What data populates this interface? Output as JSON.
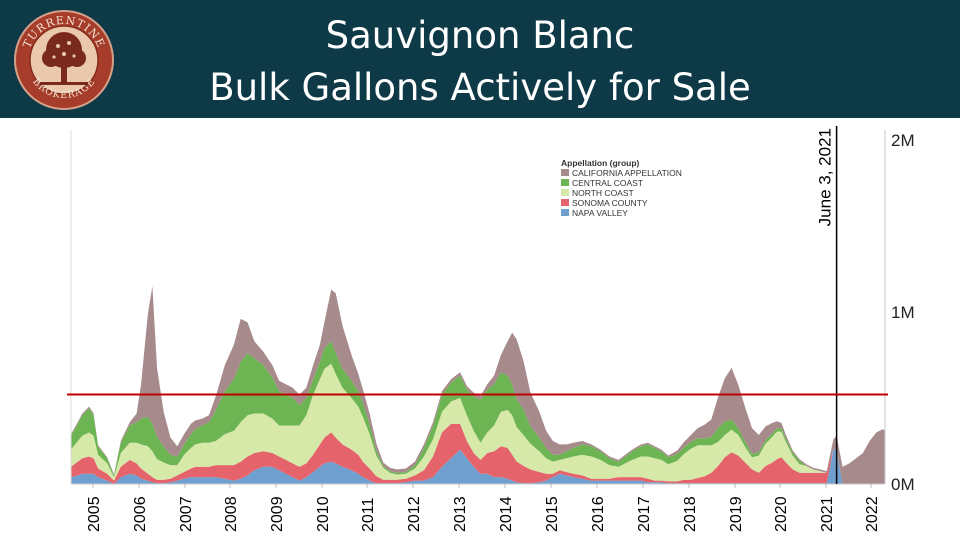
{
  "header": {
    "title_line1": "Sauvignon Blanc",
    "title_line2": "Bulk Gallons Actively for Sale",
    "logo_text_top": "TURRENTINE",
    "logo_text_bottom": "BROKERAGE",
    "background": "#0e3a47"
  },
  "chart_data": {
    "type": "area",
    "stacked": true,
    "title": "",
    "xlabel": "",
    "ylabel": "",
    "ylim": [
      0,
      2000000
    ],
    "x_ticks": [
      "2005",
      "2006",
      "2007",
      "2008",
      "2009",
      "2010",
      "2011",
      "2012",
      "2013",
      "2014",
      "2015",
      "2016",
      "2017",
      "2018",
      "2019",
      "2020",
      "2021",
      "2022"
    ],
    "y_ticks": [
      {
        "value": 0,
        "label": "0M"
      },
      {
        "value": 1000000,
        "label": "1M"
      },
      {
        "value": 2000000,
        "label": "2M"
      }
    ],
    "axis_side": "right",
    "legend": {
      "title": "Appellation (group)",
      "position": "top-center",
      "items": [
        {
          "name": "CALIFORNIA APPELLATION",
          "color": "#a78a8c"
        },
        {
          "name": "CENTRAL COAST",
          "color": "#6db452"
        },
        {
          "name": "NORTH COAST",
          "color": "#d7e9a9"
        },
        {
          "name": "SONOMA COUNTY",
          "color": "#e5636b"
        },
        {
          "name": "NAPA VALLEY",
          "color": "#6f9fcf"
        }
      ]
    },
    "annotations": {
      "vertical_line": {
        "x": 2021.42,
        "label": "June 3, 2021",
        "color": "#000000"
      },
      "reference_line": {
        "y": 520000,
        "color": "#c00000"
      }
    },
    "x": [
      2004.5,
      2004.65,
      2004.75,
      2004.9,
      2005.0,
      2005.1,
      2005.3,
      2005.45,
      2005.6,
      2005.8,
      2005.95,
      2006.05,
      2006.2,
      2006.3,
      2006.4,
      2006.55,
      2006.7,
      2006.85,
      2007.0,
      2007.15,
      2007.25,
      2007.4,
      2007.55,
      2007.7,
      2007.9,
      2008.1,
      2008.25,
      2008.4,
      2008.55,
      2008.75,
      2008.95,
      2009.1,
      2009.25,
      2009.4,
      2009.55,
      2009.7,
      2009.85,
      2010.0,
      2010.1,
      2010.25,
      2010.35,
      2010.5,
      2010.7,
      2010.85,
      2010.95,
      2011.1,
      2011.25,
      2011.4,
      2011.55,
      2011.7,
      2011.9,
      2012.1,
      2012.3,
      2012.5,
      2012.7,
      2012.9,
      2013.1,
      2013.25,
      2013.4,
      2013.55,
      2013.7,
      2013.85,
      2014.0,
      2014.15,
      2014.25,
      2014.35,
      2014.5,
      2014.65,
      2014.85,
      2015.0,
      2015.15,
      2015.3,
      2015.45,
      2015.6,
      2015.8,
      2016.0,
      2016.2,
      2016.4,
      2016.6,
      2016.75,
      2016.9,
      2017.1,
      2017.25,
      2017.4,
      2017.55,
      2017.7,
      2017.9,
      2018.05,
      2018.2,
      2018.35,
      2018.5,
      2018.65,
      2018.8,
      2018.95,
      2019.1,
      2019.25,
      2019.4,
      2019.55,
      2019.7,
      2019.85,
      2020.0,
      2020.1,
      2020.2,
      2020.3,
      2020.45,
      2020.6,
      2020.75,
      2020.9,
      2021.05,
      2021.2,
      2021.35,
      2021.42,
      2021.55,
      2021.7,
      2021.85,
      2022.0,
      2022.15,
      2022.3,
      2022.45,
      2022.5
    ],
    "series": [
      {
        "name": "NAPA VALLEY",
        "values": [
          40,
          50,
          60,
          60,
          60,
          40,
          20,
          0,
          40,
          60,
          50,
          30,
          20,
          10,
          5,
          5,
          10,
          20,
          30,
          40,
          40,
          40,
          40,
          40,
          30,
          20,
          30,
          50,
          80,
          100,
          100,
          80,
          60,
          40,
          20,
          40,
          70,
          100,
          120,
          130,
          120,
          100,
          80,
          60,
          40,
          20,
          5,
          5,
          5,
          5,
          10,
          20,
          20,
          40,
          100,
          150,
          200,
          150,
          100,
          60,
          60,
          40,
          40,
          30,
          20,
          10,
          5,
          5,
          10,
          20,
          40,
          60,
          50,
          40,
          30,
          20,
          20,
          20,
          20,
          20,
          20,
          20,
          10,
          10,
          10,
          5,
          5,
          5,
          5,
          5,
          5,
          5,
          5,
          5,
          5,
          5,
          5,
          5,
          5,
          5,
          5,
          5,
          5,
          5,
          5,
          5,
          5,
          5,
          5,
          5,
          200,
          200,
          0,
          0,
          0,
          0,
          0,
          0,
          0,
          0
        ]
      },
      {
        "name": "SONOMA COUNTY",
        "values": [
          60,
          80,
          90,
          100,
          90,
          50,
          40,
          20,
          60,
          80,
          70,
          60,
          40,
          30,
          20,
          20,
          20,
          30,
          40,
          50,
          60,
          60,
          60,
          70,
          80,
          90,
          100,
          110,
          100,
          90,
          80,
          80,
          80,
          80,
          80,
          80,
          100,
          130,
          150,
          170,
          150,
          130,
          120,
          110,
          90,
          70,
          40,
          20,
          20,
          20,
          20,
          30,
          60,
          120,
          200,
          200,
          150,
          100,
          80,
          80,
          120,
          150,
          180,
          180,
          150,
          120,
          100,
          80,
          60,
          40,
          20,
          20,
          20,
          20,
          20,
          10,
          10,
          10,
          20,
          20,
          20,
          20,
          20,
          10,
          10,
          10,
          10,
          20,
          20,
          30,
          40,
          60,
          100,
          150,
          180,
          160,
          120,
          80,
          60,
          100,
          120,
          140,
          150,
          120,
          80,
          60,
          60,
          60,
          60,
          60,
          0,
          0,
          0,
          0,
          0,
          0,
          0,
          0,
          0,
          0
        ]
      },
      {
        "name": "NORTH COAST",
        "values": [
          100,
          120,
          130,
          140,
          130,
          80,
          60,
          20,
          80,
          100,
          120,
          140,
          160,
          150,
          120,
          100,
          80,
          60,
          100,
          120,
          130,
          140,
          140,
          140,
          180,
          200,
          230,
          240,
          230,
          220,
          200,
          180,
          200,
          220,
          240,
          280,
          350,
          380,
          400,
          400,
          370,
          330,
          300,
          280,
          260,
          200,
          120,
          70,
          40,
          30,
          30,
          40,
          80,
          100,
          120,
          130,
          150,
          150,
          130,
          100,
          120,
          150,
          200,
          220,
          230,
          200,
          180,
          150,
          120,
          90,
          70,
          60,
          80,
          100,
          120,
          130,
          110,
          80,
          60,
          80,
          100,
          120,
          130,
          130,
          120,
          100,
          120,
          150,
          180,
          190,
          180,
          160,
          140,
          130,
          130,
          120,
          90,
          70,
          100,
          130,
          150,
          160,
          150,
          120,
          80,
          50,
          40,
          20,
          10,
          0,
          0,
          0,
          0,
          0,
          0,
          0,
          0,
          0,
          0,
          0
        ]
      },
      {
        "name": "CENTRAL COAST",
        "values": [
          80,
          100,
          120,
          140,
          120,
          50,
          30,
          10,
          60,
          100,
          120,
          150,
          170,
          160,
          130,
          90,
          60,
          50,
          60,
          80,
          90,
          100,
          120,
          180,
          250,
          300,
          350,
          360,
          320,
          280,
          240,
          200,
          180,
          160,
          120,
          100,
          90,
          100,
          120,
          130,
          120,
          110,
          100,
          90,
          80,
          60,
          30,
          10,
          10,
          10,
          10,
          20,
          50,
          80,
          100,
          110,
          130,
          150,
          200,
          250,
          250,
          240,
          230,
          200,
          180,
          160,
          150,
          100,
          80,
          60,
          40,
          30,
          40,
          50,
          60,
          60,
          50,
          40,
          30,
          40,
          50,
          60,
          70,
          60,
          50,
          40,
          40,
          40,
          40,
          40,
          40,
          50,
          80,
          80,
          60,
          40,
          30,
          20,
          20,
          20,
          20,
          20,
          20,
          20,
          20,
          20,
          0,
          0,
          0,
          0,
          0,
          0,
          0,
          0,
          0,
          0,
          0,
          0,
          0,
          0
        ]
      },
      {
        "name": "CALIFORNIA APPELLATION",
        "values": [
          10,
          10,
          10,
          10,
          10,
          5,
          5,
          5,
          10,
          20,
          50,
          200,
          600,
          800,
          400,
          200,
          100,
          60,
          60,
          60,
          50,
          40,
          40,
          80,
          150,
          200,
          250,
          180,
          100,
          80,
          70,
          60,
          60,
          60,
          60,
          60,
          80,
          100,
          150,
          300,
          350,
          250,
          150,
          100,
          80,
          60,
          40,
          20,
          20,
          20,
          20,
          20,
          20,
          20,
          20,
          20,
          20,
          20,
          20,
          20,
          30,
          50,
          100,
          200,
          300,
          350,
          280,
          200,
          150,
          100,
          80,
          60,
          40,
          30,
          20,
          10,
          10,
          10,
          10,
          10,
          10,
          10,
          10,
          10,
          10,
          10,
          20,
          30,
          40,
          60,
          80,
          100,
          180,
          250,
          300,
          250,
          200,
          150,
          100,
          80,
          60,
          40,
          30,
          20,
          10,
          10,
          10,
          10,
          10,
          10,
          60,
          80,
          100,
          120,
          150,
          180,
          250,
          300,
          320,
          300
        ]
      }
    ],
    "values_unit": "thousand gallons"
  }
}
